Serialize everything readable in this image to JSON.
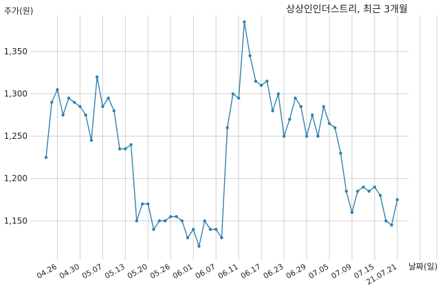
{
  "chart_data": {
    "type": "line",
    "title": "상상인인더스트리, 최근 3개월",
    "ylabel": "주가(원)",
    "xlabel": "날짜(일)",
    "ylim": [
      1104,
      1393
    ],
    "yticks": [
      1150,
      1200,
      1250,
      1300,
      1350
    ],
    "ytick_labels": [
      "1,150",
      "1,200",
      "1,250",
      "1,300",
      "1,350"
    ],
    "xtick_positions": [
      2,
      6,
      10,
      14,
      18,
      22,
      26,
      30,
      34,
      38,
      42,
      46,
      50,
      54,
      58,
      62,
      66,
      69
    ],
    "xtick_labels": [
      "04.26",
      "04.30",
      "05.07",
      "05.13",
      "05.20",
      "05.26",
      "06.01",
      "06.07",
      "06.11",
      "06.17",
      "06.23",
      "06.29",
      "07.05",
      "07.09",
      "07.15",
      "21.07.21",
      "",
      ""
    ],
    "grid": true,
    "line_color": "#2f7fb0",
    "series": [
      {
        "values": [
          1225,
          1290,
          1305,
          1275,
          1295,
          1290,
          1285,
          1275,
          1245,
          1320,
          1285,
          1295,
          1280,
          1235,
          1235,
          1240,
          1150,
          1170,
          1170,
          1140,
          1150,
          1150,
          1155,
          1155,
          1150,
          1130,
          1140,
          1120,
          1150,
          1140,
          1140,
          1130,
          1260,
          1300,
          1295,
          1385,
          1345,
          1315,
          1310,
          1315,
          1280,
          1300,
          1250,
          1270,
          1295,
          1285,
          1250,
          1275,
          1250,
          1285,
          1265,
          1260,
          1230,
          1185,
          1160,
          1185,
          1190,
          1185,
          1190,
          1180,
          1150,
          1145,
          1175
        ]
      }
    ]
  }
}
